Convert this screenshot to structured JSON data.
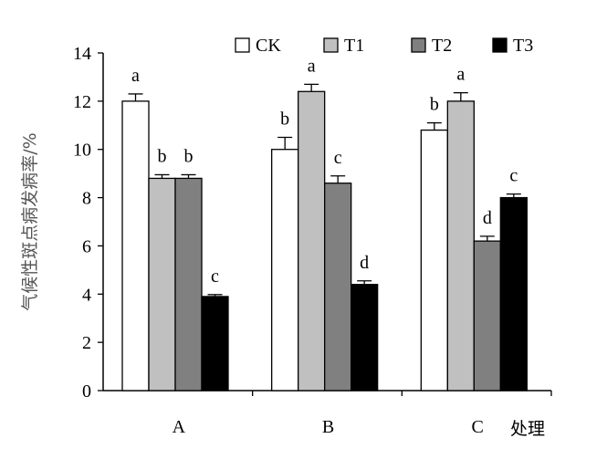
{
  "chart_data": {
    "type": "bar",
    "title": "",
    "xlabel": "处理",
    "ylabel": "气候性斑点病发病率/%",
    "categories": [
      "A",
      "B",
      "C"
    ],
    "ylim": [
      0,
      14
    ],
    "yticks": [
      "0",
      "2",
      "4",
      "6",
      "8",
      "10",
      "12",
      "14"
    ],
    "grid": false,
    "legend_position": "top",
    "series": [
      {
        "name": "CK",
        "color": "#ffffff",
        "values": [
          12.0,
          10.0,
          10.8
        ],
        "errors": [
          0.3,
          0.5,
          0.3
        ],
        "letters": [
          "a",
          "b",
          "b"
        ]
      },
      {
        "name": "T1",
        "color": "#c0c0c0",
        "values": [
          8.8,
          12.4,
          12.0
        ],
        "errors": [
          0.15,
          0.3,
          0.35
        ],
        "letters": [
          "b",
          "a",
          "a"
        ]
      },
      {
        "name": "T2",
        "color": "#808080",
        "values": [
          8.8,
          8.6,
          6.2
        ],
        "errors": [
          0.15,
          0.3,
          0.2
        ],
        "letters": [
          "b",
          "c",
          "d"
        ]
      },
      {
        "name": "T3",
        "color": "#000000",
        "values": [
          3.9,
          4.4,
          8.0
        ],
        "errors": [
          0.08,
          0.15,
          0.15
        ],
        "letters": [
          "c",
          "d",
          "c"
        ]
      }
    ]
  }
}
